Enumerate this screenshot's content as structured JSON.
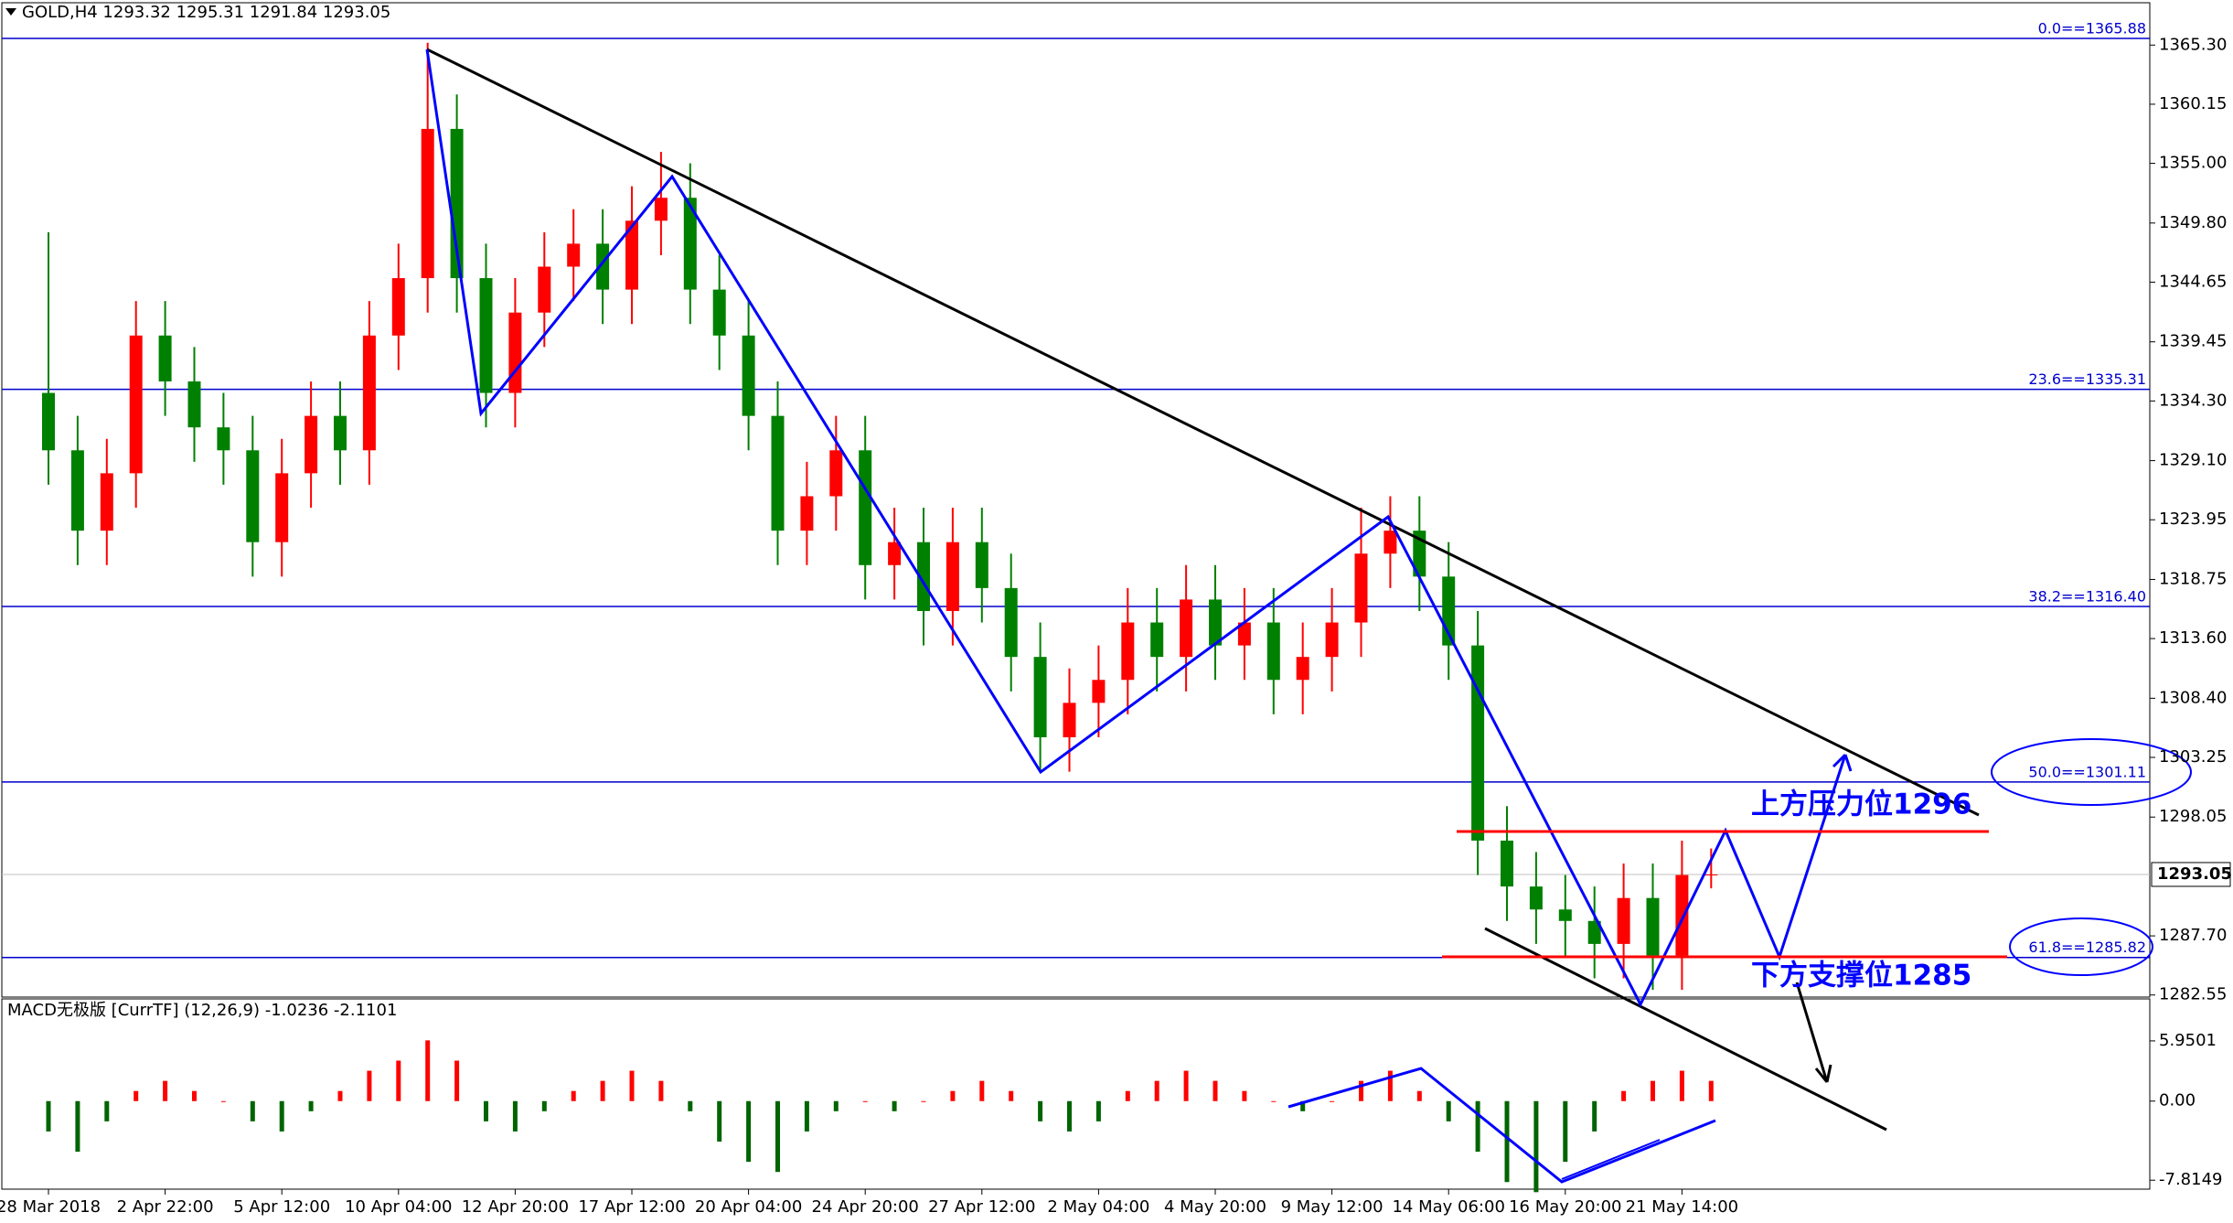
{
  "chart_data": [
    {
      "type": "candlestick",
      "title": "GOLD,H4  1293.32 1295.31 1291.84 1293.05",
      "categories": [
        "28 Mar 2018",
        null,
        null,
        null,
        "2 Apr 22:00",
        null,
        null,
        null,
        "5 Apr 12:00",
        null,
        null,
        null,
        "10 Apr 04:00",
        null,
        null,
        null,
        "12 Apr 20:00",
        null,
        null,
        null,
        "17 Apr 12:00",
        null,
        null,
        null,
        "20 Apr 04:00",
        null,
        null,
        null,
        "24 Apr 20:00",
        null,
        null,
        null,
        "27 Apr 12:00",
        null,
        null,
        null,
        "2 May 04:00",
        null,
        null,
        null,
        "4 May 20:00",
        null,
        null,
        null,
        "9 May 12:00",
        null,
        null,
        null,
        "14 May 06:00",
        null,
        null,
        null,
        "16 May 20:00",
        null,
        null,
        null,
        "21 May 14:00",
        null
      ],
      "open": [
        1335,
        1330,
        1323,
        1328,
        1340,
        1336,
        1332,
        1330,
        1322,
        1328,
        1333,
        1330,
        1340,
        1345,
        1358,
        1345,
        1335,
        1342,
        1346,
        1348,
        1344,
        1350,
        1352,
        1344,
        1340,
        1333,
        1323,
        1326,
        1330,
        1320,
        1322,
        1316,
        1322,
        1318,
        1312,
        1305,
        1308,
        1310,
        1315,
        1312,
        1317,
        1313,
        1315,
        1310,
        1312,
        1315,
        1321,
        1323,
        1319,
        1313,
        1296,
        1292,
        1290,
        1289,
        1287,
        1291,
        1286,
        1293
      ],
      "high": [
        1349,
        1333,
        1331,
        1343,
        1343,
        1339,
        1335,
        1333,
        1331,
        1336,
        1336,
        1343,
        1348,
        1365.5,
        1361,
        1348,
        1345,
        1349,
        1351,
        1351,
        1353,
        1356,
        1355,
        1347,
        1343,
        1336,
        1329,
        1333,
        1333,
        1325,
        1325,
        1325,
        1325,
        1321,
        1315,
        1311,
        1313,
        1318,
        1318,
        1320,
        1320,
        1318,
        1318,
        1315,
        1318,
        1325,
        1326,
        1326,
        1322,
        1316,
        1299,
        1295,
        1293,
        1292,
        1294,
        1294,
        1296,
        1295.31
      ],
      "low": [
        1327,
        1320,
        1320,
        1325,
        1333,
        1329,
        1327,
        1319,
        1319,
        1325,
        1327,
        1327,
        1337,
        1342,
        1342,
        1332,
        1332,
        1339,
        1343,
        1341,
        1341,
        1347,
        1341,
        1337,
        1330,
        1320,
        1320,
        1323,
        1317,
        1317,
        1313,
        1313,
        1315,
        1309,
        1302,
        1302,
        1305,
        1307,
        1309,
        1309,
        1310,
        1310,
        1307,
        1307,
        1309,
        1312,
        1318,
        1316,
        1310,
        1293,
        1289,
        1287,
        1286,
        1284,
        1284,
        1283,
        1283,
        1291.84
      ],
      "close": [
        1330,
        1323,
        1328,
        1340,
        1336,
        1332,
        1330,
        1322,
        1328,
        1333,
        1330,
        1340,
        1345,
        1358,
        1345,
        1335,
        1342,
        1346,
        1348,
        1344,
        1350,
        1352,
        1344,
        1340,
        1333,
        1323,
        1326,
        1330,
        1320,
        1322,
        1316,
        1322,
        1318,
        1312,
        1305,
        1308,
        1310,
        1315,
        1312,
        1317,
        1313,
        1315,
        1310,
        1312,
        1315,
        1321,
        1323,
        1319,
        1313,
        1296,
        1292,
        1290,
        1289,
        1287,
        1291,
        1286,
        1293,
        1293.05
      ],
      "up_color": "#ff0000",
      "down_color": "#008000",
      "ylim": [
        1282.37,
        1368.99
      ],
      "yticks": [
        {
          "value": 1365.3,
          "label": "1365.30"
        },
        1360.15,
        {
          "value": 1355,
          "label": "1355.00"
        },
        {
          "value": 1349.8,
          "label": "1349.80"
        },
        1344.65,
        1339.45,
        {
          "value": 1334.3,
          "label": "1334.30"
        },
        {
          "value": 1329.1,
          "label": "1329.10"
        },
        1323.95,
        1318.75,
        {
          "value": 1313.6,
          "label": "1313.60"
        },
        {
          "value": 1308.4,
          "label": "1308.40"
        },
        1303.25,
        1298.05,
        {
          "value": 1287.7,
          "label": "1287.70"
        },
        1282.55
      ],
      "levels": [
        {
          "value": 1365.88,
          "label": "0.0==1365.88"
        },
        {
          "value": 1335.31,
          "label": "23.6==1335.31"
        },
        {
          "value": 1316.4,
          "label": "38.2==1316.40"
        },
        {
          "value": 1301.11,
          "label": "50.0==1301.11"
        },
        {
          "value": 1285.82,
          "label": "61.8==1285.82"
        }
      ],
      "level_color": "#0000cd",
      "current_price": 1293.05,
      "annotations": [
        "上方压力位1296",
        "下方支撑位1285"
      ]
    },
    {
      "type": "bar",
      "title": "MACD无极版 [CurrTF] (12,26,9) -1.0236 -2.1101",
      "values": [
        -3,
        -5,
        -2,
        1,
        2,
        1,
        0,
        -2,
        -3,
        -1,
        1,
        3,
        4,
        6,
        4,
        -2,
        -3,
        -1,
        1,
        2,
        3,
        2,
        -1,
        -4,
        -6,
        -7,
        -3,
        -1,
        0,
        -1,
        0,
        1,
        2,
        1,
        -2,
        -3,
        -2,
        1,
        2,
        3,
        2,
        1,
        0,
        -1,
        0,
        2,
        3,
        1,
        -2,
        -5,
        -8,
        -9,
        -6,
        -3,
        1,
        2,
        3,
        2
      ],
      "up_color": "#ff0000",
      "down_color": "#006400",
      "ylim": [
        -8.7,
        10.1
      ],
      "yticks": [
        5.9501,
        {
          "value": 0,
          "label": "0.00"
        },
        -7.8149
      ]
    }
  ]
}
